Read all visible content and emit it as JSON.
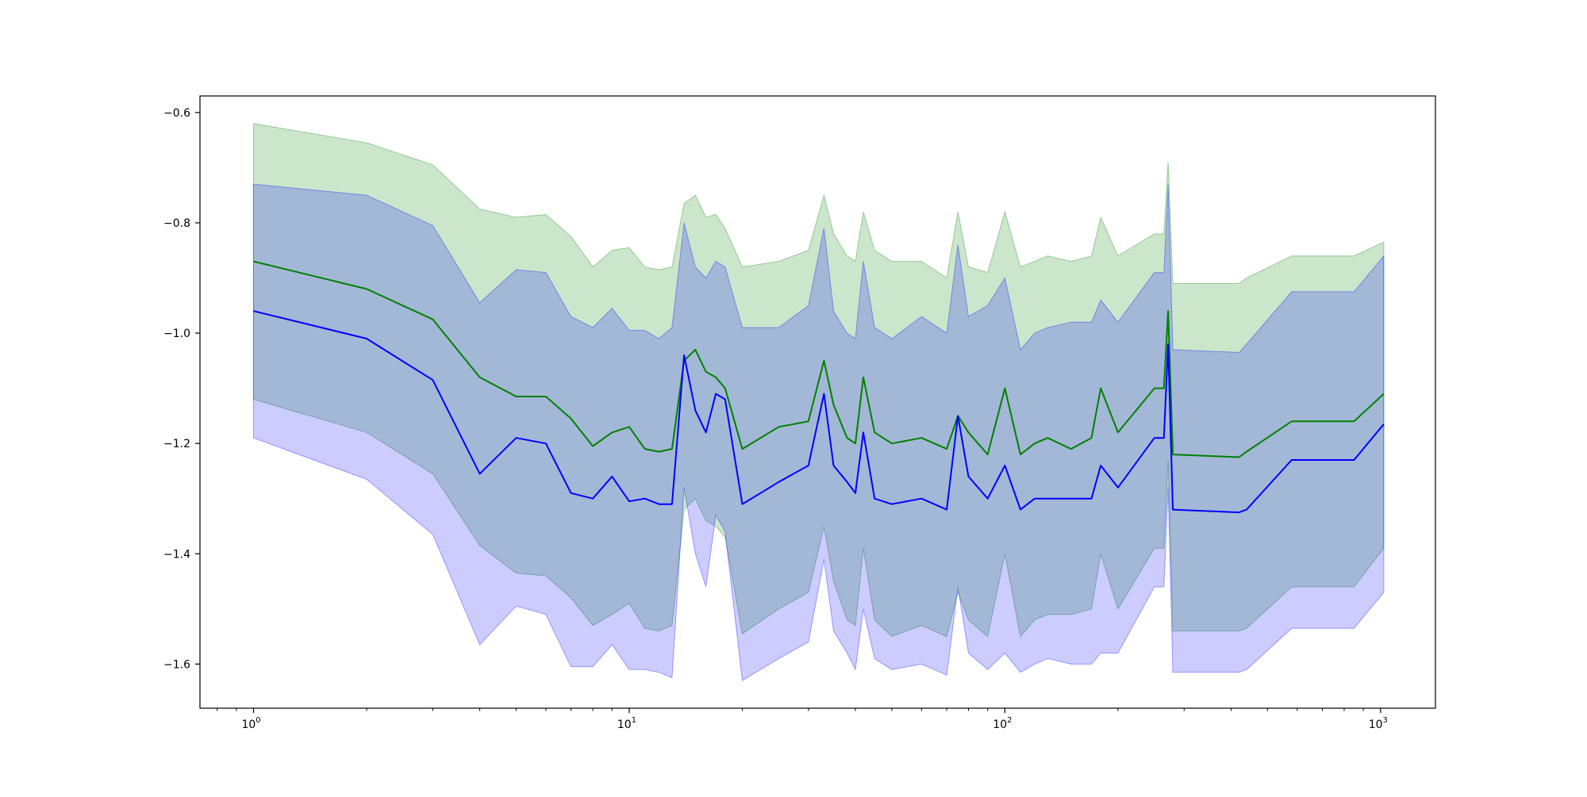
{
  "chart_data": {
    "type": "line",
    "title": "",
    "xlabel": "",
    "ylabel": "",
    "xscale": "log",
    "xlim": [
      0.72,
      1400
    ],
    "ylim": [
      -1.68,
      -0.57
    ],
    "grid": false,
    "legend": "none",
    "x_ticks": [
      {
        "value": 1,
        "base": "10",
        "exp": "0"
      },
      {
        "value": 10,
        "base": "10",
        "exp": "1"
      },
      {
        "value": 100,
        "base": "10",
        "exp": "2"
      },
      {
        "value": 1000,
        "base": "10",
        "exp": "3"
      }
    ],
    "y_ticks": [
      {
        "value": -0.6,
        "label": "−0.6"
      },
      {
        "value": -0.8,
        "label": "−0.8"
      },
      {
        "value": -1.0,
        "label": "−1.0"
      },
      {
        "value": -1.2,
        "label": "−1.2"
      },
      {
        "value": -1.4,
        "label": "−1.4"
      },
      {
        "value": -1.6,
        "label": "−1.6"
      }
    ],
    "series": [
      {
        "color": "#008000",
        "band_color": "#008000",
        "band_opacity": 0.2,
        "x": [
          1,
          2,
          3,
          4,
          5,
          6,
          7,
          8,
          9,
          10,
          11,
          12,
          13,
          14,
          15,
          16,
          17,
          18,
          20,
          25,
          30,
          33,
          35,
          38,
          40,
          42,
          45,
          50,
          60,
          70,
          75,
          80,
          90,
          100,
          110,
          120,
          130,
          150,
          170,
          180,
          200,
          250,
          265,
          272,
          280,
          420,
          440,
          580,
          850,
          1020
        ],
        "y": [
          -0.87,
          -0.92,
          -0.975,
          -1.08,
          -1.115,
          -1.115,
          -1.155,
          -1.205,
          -1.18,
          -1.17,
          -1.21,
          -1.215,
          -1.21,
          -1.05,
          -1.03,
          -1.07,
          -1.08,
          -1.1,
          -1.21,
          -1.17,
          -1.16,
          -1.05,
          -1.13,
          -1.19,
          -1.2,
          -1.08,
          -1.18,
          -1.2,
          -1.19,
          -1.21,
          -1.15,
          -1.18,
          -1.22,
          -1.1,
          -1.22,
          -1.2,
          -1.19,
          -1.21,
          -1.19,
          -1.1,
          -1.18,
          -1.1,
          -1.1,
          -0.96,
          -1.22,
          -1.225,
          -1.215,
          -1.16,
          -1.16,
          -1.11
        ],
        "upper": [
          -0.62,
          -0.655,
          -0.695,
          -0.775,
          -0.79,
          -0.785,
          -0.825,
          -0.88,
          -0.85,
          -0.845,
          -0.88,
          -0.885,
          -0.88,
          -0.765,
          -0.75,
          -0.79,
          -0.785,
          -0.81,
          -0.88,
          -0.87,
          -0.85,
          -0.75,
          -0.82,
          -0.86,
          -0.87,
          -0.78,
          -0.85,
          -0.87,
          -0.87,
          -0.9,
          -0.78,
          -0.88,
          -0.89,
          -0.78,
          -0.88,
          -0.87,
          -0.86,
          -0.87,
          -0.86,
          -0.79,
          -0.86,
          -0.82,
          -0.82,
          -0.69,
          -0.91,
          -0.91,
          -0.9,
          -0.86,
          -0.86,
          -0.835
        ],
        "lower": [
          -1.12,
          -1.18,
          -1.255,
          -1.385,
          -1.435,
          -1.44,
          -1.48,
          -1.53,
          -1.51,
          -1.49,
          -1.535,
          -1.54,
          -1.53,
          -1.32,
          -1.3,
          -1.34,
          -1.35,
          -1.37,
          -1.545,
          -1.5,
          -1.47,
          -1.35,
          -1.45,
          -1.52,
          -1.53,
          -1.39,
          -1.52,
          -1.55,
          -1.53,
          -1.55,
          -1.47,
          -1.52,
          -1.55,
          -1.4,
          -1.55,
          -1.52,
          -1.51,
          -1.51,
          -1.5,
          -1.4,
          -1.5,
          -1.39,
          -1.39,
          -1.23,
          -1.54,
          -1.54,
          -1.535,
          -1.46,
          -1.46,
          -1.39
        ]
      },
      {
        "color": "#0000ff",
        "band_color": "#0000ff",
        "band_opacity": 0.2,
        "x": [
          1,
          2,
          3,
          4,
          5,
          6,
          7,
          8,
          9,
          10,
          11,
          12,
          13,
          14,
          15,
          16,
          17,
          18,
          20,
          25,
          30,
          33,
          35,
          38,
          40,
          42,
          45,
          50,
          60,
          70,
          75,
          80,
          90,
          100,
          110,
          120,
          130,
          150,
          170,
          180,
          200,
          250,
          265,
          272,
          280,
          420,
          440,
          580,
          850,
          1020
        ],
        "y": [
          -0.96,
          -1.01,
          -1.085,
          -1.255,
          -1.19,
          -1.2,
          -1.29,
          -1.3,
          -1.26,
          -1.305,
          -1.3,
          -1.31,
          -1.31,
          -1.04,
          -1.14,
          -1.18,
          -1.11,
          -1.12,
          -1.31,
          -1.27,
          -1.24,
          -1.11,
          -1.24,
          -1.27,
          -1.29,
          -1.18,
          -1.3,
          -1.31,
          -1.3,
          -1.32,
          -1.15,
          -1.26,
          -1.3,
          -1.24,
          -1.32,
          -1.3,
          -1.3,
          -1.3,
          -1.3,
          -1.24,
          -1.28,
          -1.19,
          -1.19,
          -1.02,
          -1.32,
          -1.325,
          -1.32,
          -1.23,
          -1.23,
          -1.165
        ],
        "upper": [
          -0.73,
          -0.75,
          -0.805,
          -0.945,
          -0.885,
          -0.89,
          -0.97,
          -0.99,
          -0.955,
          -0.995,
          -0.995,
          -1.01,
          -0.99,
          -0.8,
          -0.88,
          -0.9,
          -0.87,
          -0.88,
          -0.99,
          -0.99,
          -0.95,
          -0.81,
          -0.96,
          -1.0,
          -1.01,
          -0.87,
          -0.99,
          -1.01,
          -0.97,
          -1.0,
          -0.84,
          -0.97,
          -0.95,
          -0.9,
          -1.03,
          -1.0,
          -0.99,
          -0.98,
          -0.98,
          -0.94,
          -0.98,
          -0.89,
          -0.89,
          -0.73,
          -1.03,
          -1.035,
          -1.02,
          -0.925,
          -0.925,
          -0.86
        ],
        "lower": [
          -1.19,
          -1.265,
          -1.365,
          -1.565,
          -1.495,
          -1.51,
          -1.605,
          -1.605,
          -1.565,
          -1.61,
          -1.61,
          -1.615,
          -1.625,
          -1.28,
          -1.4,
          -1.46,
          -1.33,
          -1.36,
          -1.63,
          -1.59,
          -1.56,
          -1.41,
          -1.54,
          -1.58,
          -1.61,
          -1.5,
          -1.59,
          -1.61,
          -1.6,
          -1.62,
          -1.46,
          -1.58,
          -1.61,
          -1.58,
          -1.615,
          -1.6,
          -1.59,
          -1.6,
          -1.6,
          -1.58,
          -1.58,
          -1.46,
          -1.46,
          -1.28,
          -1.615,
          -1.615,
          -1.61,
          -1.535,
          -1.535,
          -1.47
        ]
      }
    ]
  }
}
